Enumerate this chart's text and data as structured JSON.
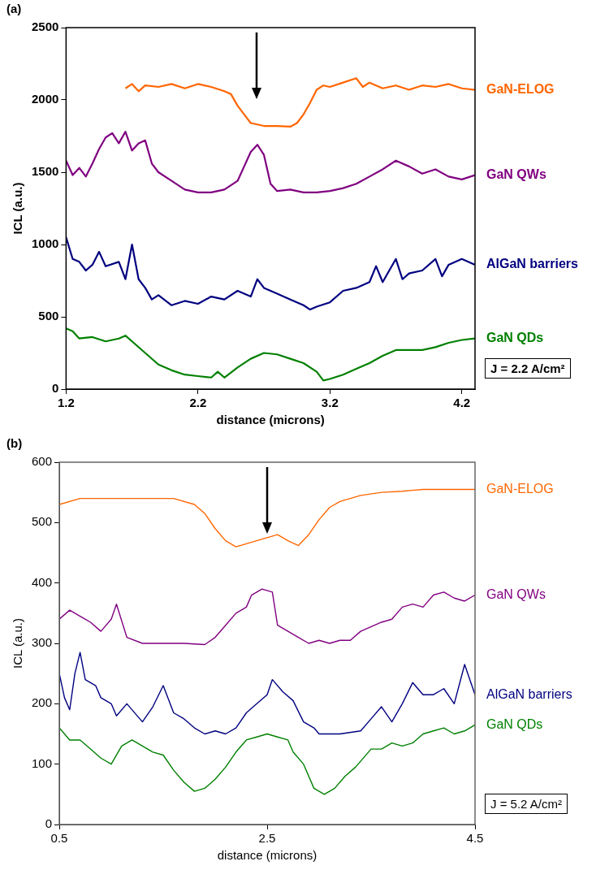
{
  "chart_data": [
    {
      "type": "line",
      "xlabel": "distance (microns)",
      "ylabel": "ICL (a.u.)",
      "xlim": [
        1.2,
        4.3
      ],
      "xticks": [
        1.2,
        2.2,
        3.2,
        4.2
      ],
      "ylim": [
        0,
        2500
      ],
      "yticks": [
        0,
        500,
        1000,
        1500,
        2000,
        2500
      ],
      "legend": false,
      "marker": "none",
      "annotations": [
        "(a)",
        "J = 2.2 A/cm²"
      ],
      "series": [
        {
          "name": "GaN-ELOG",
          "color": "#ff6600",
          "x": [
            1.65,
            1.7,
            1.75,
            1.8,
            1.9,
            2.0,
            2.1,
            2.2,
            2.3,
            2.4,
            2.45,
            2.5,
            2.55,
            2.6,
            2.7,
            2.8,
            2.9,
            2.95,
            3.0,
            3.05,
            3.1,
            3.15,
            3.2,
            3.3,
            3.4,
            3.45,
            3.5,
            3.6,
            3.7,
            3.8,
            3.9,
            4.0,
            4.1,
            4.2,
            4.3
          ],
          "values": [
            2080,
            2110,
            2060,
            2100,
            2090,
            2110,
            2080,
            2110,
            2090,
            2060,
            2040,
            1960,
            1900,
            1840,
            1820,
            1820,
            1815,
            1840,
            1900,
            1980,
            2070,
            2100,
            2090,
            2120,
            2150,
            2090,
            2120,
            2080,
            2100,
            2070,
            2100,
            2090,
            2110,
            2080,
            2070
          ]
        },
        {
          "name": "GaN QWs",
          "color": "#800080",
          "x": [
            1.2,
            1.25,
            1.3,
            1.35,
            1.4,
            1.45,
            1.5,
            1.55,
            1.6,
            1.65,
            1.7,
            1.75,
            1.8,
            1.85,
            1.9,
            2.0,
            2.1,
            2.2,
            2.3,
            2.4,
            2.5,
            2.55,
            2.6,
            2.65,
            2.7,
            2.75,
            2.8,
            2.9,
            3.0,
            3.1,
            3.2,
            3.3,
            3.4,
            3.5,
            3.6,
            3.7,
            3.8,
            3.9,
            4.0,
            4.1,
            4.2,
            4.3
          ],
          "values": [
            1580,
            1480,
            1530,
            1470,
            1560,
            1660,
            1740,
            1770,
            1700,
            1780,
            1650,
            1700,
            1720,
            1560,
            1500,
            1440,
            1380,
            1360,
            1360,
            1380,
            1440,
            1540,
            1640,
            1690,
            1620,
            1420,
            1370,
            1380,
            1360,
            1360,
            1370,
            1390,
            1420,
            1470,
            1520,
            1580,
            1540,
            1490,
            1520,
            1470,
            1450,
            1480
          ]
        },
        {
          "name": "AlGaN barriers",
          "color": "#000080",
          "x": [
            1.2,
            1.25,
            1.3,
            1.35,
            1.4,
            1.45,
            1.5,
            1.6,
            1.65,
            1.7,
            1.75,
            1.8,
            1.85,
            1.9,
            2.0,
            2.1,
            2.2,
            2.3,
            2.4,
            2.5,
            2.6,
            2.65,
            2.7,
            2.8,
            2.9,
            3.0,
            3.05,
            3.1,
            3.2,
            3.3,
            3.4,
            3.5,
            3.55,
            3.6,
            3.7,
            3.75,
            3.8,
            3.9,
            4.0,
            4.05,
            4.1,
            4.2,
            4.3
          ],
          "values": [
            1050,
            900,
            880,
            820,
            860,
            950,
            850,
            880,
            760,
            1000,
            760,
            700,
            620,
            650,
            580,
            610,
            590,
            640,
            620,
            680,
            640,
            760,
            700,
            660,
            620,
            580,
            550,
            570,
            600,
            680,
            700,
            740,
            850,
            740,
            900,
            760,
            800,
            820,
            900,
            780,
            860,
            900,
            860
          ]
        },
        {
          "name": "GaN QDs",
          "color": "#008000",
          "x": [
            1.2,
            1.25,
            1.3,
            1.4,
            1.5,
            1.6,
            1.65,
            1.7,
            1.8,
            1.9,
            2.0,
            2.1,
            2.2,
            2.3,
            2.35,
            2.4,
            2.5,
            2.6,
            2.7,
            2.8,
            2.9,
            3.0,
            3.1,
            3.15,
            3.2,
            3.3,
            3.4,
            3.5,
            3.6,
            3.7,
            3.8,
            3.9,
            4.0,
            4.1,
            4.2,
            4.3
          ],
          "values": [
            420,
            400,
            350,
            360,
            330,
            350,
            370,
            330,
            250,
            170,
            130,
            100,
            90,
            80,
            120,
            80,
            150,
            210,
            250,
            240,
            210,
            180,
            120,
            60,
            70,
            100,
            140,
            180,
            230,
            270,
            270,
            270,
            290,
            320,
            340,
            350
          ]
        }
      ]
    },
    {
      "type": "line",
      "xlabel": "distance (microns)",
      "ylabel": "ICL (a.u.)",
      "xlim": [
        0.5,
        4.5
      ],
      "xticks": [
        0.5,
        2.5,
        4.5
      ],
      "ylim": [
        0,
        600
      ],
      "yticks": [
        0,
        100,
        200,
        300,
        400,
        500,
        600
      ],
      "legend": false,
      "marker": "none",
      "annotations": [
        "(b)",
        "J = 5.2 A/cm²"
      ],
      "series": [
        {
          "name": "GaN-ELOG",
          "color": "#ff6600",
          "x": [
            0.5,
            0.7,
            1.0,
            1.3,
            1.6,
            1.8,
            1.9,
            2.0,
            2.1,
            2.2,
            2.3,
            2.4,
            2.5,
            2.6,
            2.7,
            2.8,
            2.9,
            3.0,
            3.1,
            3.2,
            3.4,
            3.6,
            3.8,
            4.0,
            4.2,
            4.5
          ],
          "values": [
            530,
            540,
            540,
            540,
            540,
            530,
            515,
            490,
            470,
            460,
            465,
            470,
            475,
            480,
            470,
            462,
            480,
            505,
            525,
            535,
            545,
            550,
            552,
            555,
            555,
            555
          ]
        },
        {
          "name": "GaN QWs",
          "color": "#800080",
          "x": [
            0.5,
            0.6,
            0.7,
            0.8,
            0.9,
            1.0,
            1.05,
            1.15,
            1.3,
            1.5,
            1.7,
            1.9,
            2.0,
            2.1,
            2.2,
            2.3,
            2.35,
            2.45,
            2.55,
            2.6,
            2.7,
            2.8,
            2.9,
            3.0,
            3.1,
            3.2,
            3.3,
            3.4,
            3.6,
            3.7,
            3.8,
            3.9,
            4.0,
            4.1,
            4.2,
            4.3,
            4.4,
            4.5
          ],
          "values": [
            340,
            355,
            345,
            335,
            320,
            340,
            365,
            310,
            300,
            300,
            300,
            298,
            310,
            330,
            350,
            360,
            380,
            390,
            385,
            330,
            320,
            310,
            300,
            305,
            300,
            305,
            305,
            320,
            335,
            340,
            360,
            365,
            360,
            380,
            385,
            375,
            370,
            380
          ]
        },
        {
          "name": "AlGaN barriers",
          "color": "#000080",
          "x": [
            0.5,
            0.55,
            0.6,
            0.65,
            0.7,
            0.75,
            0.85,
            0.9,
            1.0,
            1.05,
            1.15,
            1.3,
            1.4,
            1.5,
            1.6,
            1.7,
            1.8,
            1.9,
            2.0,
            2.1,
            2.2,
            2.3,
            2.4,
            2.5,
            2.55,
            2.65,
            2.75,
            2.85,
            2.95,
            3.0,
            3.2,
            3.4,
            3.5,
            3.6,
            3.7,
            3.8,
            3.9,
            4.0,
            4.1,
            4.2,
            4.3,
            4.4,
            4.5
          ],
          "values": [
            250,
            210,
            190,
            250,
            285,
            240,
            230,
            210,
            200,
            180,
            200,
            170,
            195,
            230,
            185,
            175,
            160,
            150,
            155,
            150,
            160,
            185,
            200,
            215,
            240,
            220,
            205,
            170,
            160,
            150,
            150,
            155,
            175,
            195,
            170,
            200,
            235,
            215,
            215,
            225,
            200,
            265,
            215
          ]
        },
        {
          "name": "GaN QDs",
          "color": "#008000",
          "x": [
            0.5,
            0.6,
            0.7,
            0.8,
            0.9,
            1.0,
            1.1,
            1.2,
            1.3,
            1.4,
            1.5,
            1.6,
            1.7,
            1.8,
            1.9,
            2.0,
            2.1,
            2.2,
            2.3,
            2.4,
            2.5,
            2.6,
            2.7,
            2.75,
            2.85,
            2.95,
            3.05,
            3.15,
            3.25,
            3.35,
            3.5,
            3.6,
            3.7,
            3.8,
            3.9,
            4.0,
            4.1,
            4.2,
            4.3,
            4.4,
            4.5
          ],
          "values": [
            160,
            140,
            140,
            125,
            110,
            100,
            130,
            140,
            130,
            120,
            115,
            90,
            70,
            55,
            60,
            75,
            95,
            120,
            140,
            145,
            150,
            145,
            140,
            120,
            100,
            60,
            50,
            60,
            80,
            95,
            125,
            125,
            135,
            130,
            135,
            150,
            155,
            160,
            150,
            155,
            165
          ]
        }
      ]
    }
  ]
}
